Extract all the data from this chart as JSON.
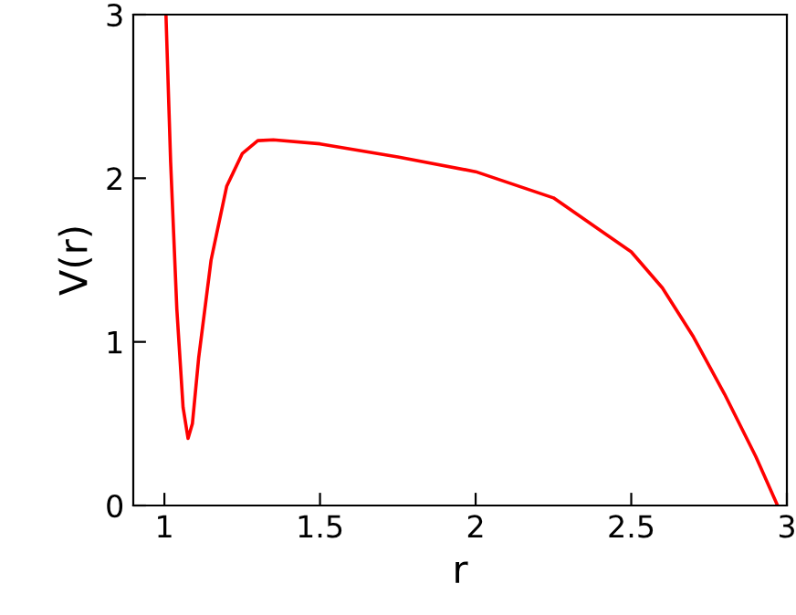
{
  "chart_data": {
    "type": "line",
    "xlabel": "r",
    "ylabel": "V(r)",
    "x": [
      1.005,
      1.02,
      1.04,
      1.06,
      1.076,
      1.09,
      1.11,
      1.15,
      1.2,
      1.25,
      1.3,
      1.35,
      1.5,
      1.75,
      2.0,
      2.25,
      2.5,
      2.6,
      2.7,
      2.8,
      2.9,
      2.97
    ],
    "series": [
      {
        "color": "#ff0000",
        "values": [
          3.0,
          2.1,
          1.2,
          0.6,
          0.41,
          0.5,
          0.9,
          1.5,
          1.95,
          2.15,
          2.23,
          2.235,
          2.21,
          2.13,
          2.04,
          1.88,
          1.55,
          1.33,
          1.03,
          0.68,
          0.3,
          0.0
        ]
      }
    ],
    "xlim": [
      0.9,
      3.0
    ],
    "ylim": [
      0,
      3
    ],
    "xticks": [
      1,
      1.5,
      2,
      2.5,
      3
    ],
    "yticks": [
      0,
      1,
      2,
      3
    ],
    "grid": false,
    "legend": false,
    "marker": "none",
    "line_style": "solid"
  }
}
